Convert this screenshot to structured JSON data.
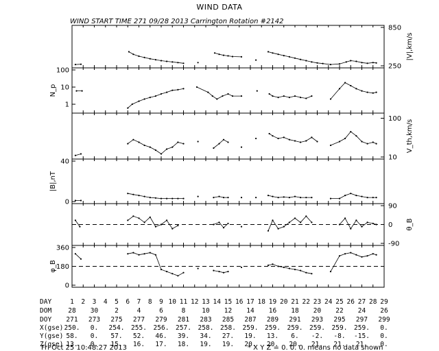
{
  "chart_data": {
    "type": "line",
    "title": "WIND DATA",
    "subtitle": "WIND START TIME 271 09/28 2013 Carrington Rotation #2142",
    "x": {
      "days": [
        1,
        2,
        3,
        4,
        5,
        6,
        7,
        8,
        9,
        10,
        11,
        12,
        13,
        14,
        15,
        16,
        17,
        18,
        19,
        20,
        21,
        22,
        23,
        24,
        25,
        26,
        27,
        28,
        29
      ],
      "day_labels": [
        "1",
        "2",
        "3",
        "4",
        "5",
        "6",
        "7",
        "8",
        "9",
        "10",
        "11",
        "12",
        "13",
        "14",
        "15",
        "16",
        "17",
        "18",
        "19",
        "20",
        "21",
        "22",
        "23",
        "24",
        "25",
        "26",
        "27",
        "28",
        "29"
      ],
      "xlim": [
        1,
        29
      ]
    },
    "panels": [
      {
        "id": "speed",
        "label": "|V|,km/s",
        "scale": "linear",
        "ylim": [
          250,
          850
        ],
        "ticks": [
          "850",
          "250"
        ],
        "points": [
          [
            1.3,
            270
          ],
          [
            1.8,
            275
          ],
          [
            6.1,
            470
          ],
          [
            6.5,
            430
          ],
          [
            7.0,
            400
          ],
          [
            7.5,
            380
          ],
          [
            8.0,
            360
          ],
          [
            8.5,
            345
          ],
          [
            9.0,
            330
          ],
          [
            9.5,
            320
          ],
          [
            10.0,
            310
          ],
          [
            10.5,
            300
          ],
          [
            11.0,
            290
          ],
          [
            12.3,
            300
          ],
          [
            13.8,
            450
          ],
          [
            14.2,
            430
          ],
          [
            14.6,
            415
          ],
          [
            15.0,
            405
          ],
          [
            15.4,
            395
          ],
          [
            16.2,
            390
          ],
          [
            17.5,
            340
          ],
          [
            18.6,
            470
          ],
          [
            19.0,
            450
          ],
          [
            19.5,
            430
          ],
          [
            20.0,
            410
          ],
          [
            20.5,
            390
          ],
          [
            21.0,
            370
          ],
          [
            21.5,
            350
          ],
          [
            22.0,
            330
          ],
          [
            22.5,
            310
          ],
          [
            23.0,
            295
          ],
          [
            23.5,
            285
          ],
          [
            24.2,
            270
          ],
          [
            25.0,
            280
          ],
          [
            25.6,
            310
          ],
          [
            26.0,
            330
          ],
          [
            26.5,
            320
          ],
          [
            27.0,
            300
          ],
          [
            27.5,
            290
          ],
          [
            28.0,
            300
          ],
          [
            28.3,
            295
          ]
        ]
      },
      {
        "id": "density",
        "label": "N_p",
        "scale": "log",
        "ylim": [
          0.4,
          100
        ],
        "ticks": [
          "100",
          "10",
          "1"
        ],
        "points": [
          [
            1.4,
            6
          ],
          [
            1.9,
            6
          ],
          [
            6.0,
            0.6
          ],
          [
            6.4,
            1.0
          ],
          [
            7.0,
            1.5
          ],
          [
            7.5,
            2.0
          ],
          [
            8.0,
            2.5
          ],
          [
            8.5,
            3.0
          ],
          [
            9.0,
            4.0
          ],
          [
            9.5,
            5.0
          ],
          [
            10.0,
            6.5
          ],
          [
            10.5,
            7.0
          ],
          [
            11.0,
            8.0
          ],
          [
            12.2,
            10
          ],
          [
            13.2,
            5
          ],
          [
            13.6,
            3
          ],
          [
            14.0,
            2
          ],
          [
            14.5,
            3
          ],
          [
            15.0,
            4
          ],
          [
            15.4,
            3
          ],
          [
            16.2,
            3
          ],
          [
            17.6,
            6
          ],
          [
            18.7,
            4
          ],
          [
            19.0,
            3
          ],
          [
            19.5,
            2.5
          ],
          [
            20.0,
            3
          ],
          [
            20.5,
            2.5
          ],
          [
            21.0,
            3
          ],
          [
            21.5,
            2.5
          ],
          [
            22.0,
            2.2
          ],
          [
            22.5,
            3.0
          ],
          [
            24.2,
            2.0
          ],
          [
            25.0,
            8
          ],
          [
            25.5,
            18
          ],
          [
            26.0,
            12
          ],
          [
            26.5,
            8
          ],
          [
            27.0,
            6
          ],
          [
            27.5,
            5
          ],
          [
            28.0,
            4.5
          ],
          [
            28.3,
            5
          ]
        ]
      },
      {
        "id": "thermal-speed",
        "label": "V_th,km/s",
        "scale": "log",
        "ylim": [
          10,
          120
        ],
        "ticks": [
          "100",
          "10"
        ],
        "points": [
          [
            1.3,
            11
          ],
          [
            1.8,
            12
          ],
          [
            6.0,
            22
          ],
          [
            6.5,
            28
          ],
          [
            7.0,
            24
          ],
          [
            7.5,
            20
          ],
          [
            8.0,
            18
          ],
          [
            8.5,
            15
          ],
          [
            9.0,
            12
          ],
          [
            9.5,
            16
          ],
          [
            10.0,
            18
          ],
          [
            10.5,
            24
          ],
          [
            11.0,
            22
          ],
          [
            12.3,
            25
          ],
          [
            13.7,
            17
          ],
          [
            14.2,
            22
          ],
          [
            14.6,
            28
          ],
          [
            15.0,
            24
          ],
          [
            16.2,
            18
          ],
          [
            17.5,
            30
          ],
          [
            18.7,
            40
          ],
          [
            19.0,
            35
          ],
          [
            19.5,
            30
          ],
          [
            20.0,
            32
          ],
          [
            20.5,
            28
          ],
          [
            21.0,
            26
          ],
          [
            21.5,
            24
          ],
          [
            22.0,
            26
          ],
          [
            22.5,
            32
          ],
          [
            23.0,
            25
          ],
          [
            24.2,
            20
          ],
          [
            25.0,
            25
          ],
          [
            25.5,
            30
          ],
          [
            26.0,
            45
          ],
          [
            26.5,
            35
          ],
          [
            27.0,
            25
          ],
          [
            27.5,
            22
          ],
          [
            28.0,
            24
          ],
          [
            28.3,
            22
          ]
        ]
      },
      {
        "id": "bmag",
        "label": "|B|,nT",
        "scale": "linear",
        "ylim": [
          0,
          40
        ],
        "ticks": [
          "40",
          "0"
        ],
        "points": [
          [
            1.3,
            1
          ],
          [
            1.8,
            1
          ],
          [
            6.0,
            8
          ],
          [
            6.5,
            7
          ],
          [
            7.0,
            6
          ],
          [
            7.5,
            5
          ],
          [
            8.0,
            4
          ],
          [
            8.5,
            3.5
          ],
          [
            9.0,
            3
          ],
          [
            9.5,
            3
          ],
          [
            10.0,
            3
          ],
          [
            10.5,
            3
          ],
          [
            11.0,
            3
          ],
          [
            12.3,
            5
          ],
          [
            13.7,
            4
          ],
          [
            14.2,
            5
          ],
          [
            14.6,
            4
          ],
          [
            15.0,
            4
          ],
          [
            16.2,
            4
          ],
          [
            17.5,
            4
          ],
          [
            18.6,
            6
          ],
          [
            19.0,
            5
          ],
          [
            19.5,
            4
          ],
          [
            20.0,
            4.5
          ],
          [
            20.5,
            4
          ],
          [
            21.0,
            5
          ],
          [
            21.5,
            4
          ],
          [
            22.0,
            4
          ],
          [
            22.5,
            4
          ],
          [
            24.2,
            3
          ],
          [
            25.0,
            3
          ],
          [
            25.5,
            6
          ],
          [
            26.0,
            8
          ],
          [
            26.5,
            6
          ],
          [
            27.0,
            5
          ],
          [
            27.5,
            4
          ],
          [
            28.0,
            4
          ],
          [
            28.3,
            4
          ]
        ]
      },
      {
        "id": "theta-b",
        "label": "θ_B",
        "scale": "linear",
        "ylim": [
          -90,
          90
        ],
        "ticks": [
          "90",
          "0",
          "-90"
        ],
        "dashed_reference": 0,
        "points": [
          [
            1.3,
            20
          ],
          [
            1.7,
            -10
          ],
          [
            6.0,
            20
          ],
          [
            6.5,
            40
          ],
          [
            7.0,
            30
          ],
          [
            7.5,
            10
          ],
          [
            8.0,
            35
          ],
          [
            8.5,
            -10
          ],
          [
            9.0,
            0
          ],
          [
            9.5,
            20
          ],
          [
            10.0,
            -20
          ],
          [
            10.5,
            -5
          ],
          [
            13.7,
            0
          ],
          [
            14.2,
            10
          ],
          [
            14.6,
            -15
          ],
          [
            15.0,
            5
          ],
          [
            16.2,
            -10
          ],
          [
            18.6,
            -30
          ],
          [
            19.0,
            20
          ],
          [
            19.5,
            -20
          ],
          [
            20.0,
            -10
          ],
          [
            20.5,
            10
          ],
          [
            21.0,
            30
          ],
          [
            21.5,
            10
          ],
          [
            22.0,
            40
          ],
          [
            22.5,
            10
          ],
          [
            25.0,
            0
          ],
          [
            25.5,
            30
          ],
          [
            26.0,
            -20
          ],
          [
            26.5,
            20
          ],
          [
            27.0,
            -10
          ],
          [
            27.5,
            10
          ],
          [
            28.0,
            5
          ],
          [
            28.3,
            0
          ]
        ]
      },
      {
        "id": "phi-b",
        "label": "φ_B",
        "scale": "linear",
        "ylim": [
          0,
          360
        ],
        "ticks": [
          "360",
          "180",
          "0"
        ],
        "dashed_reference": 180,
        "points": [
          [
            1.3,
            300
          ],
          [
            1.8,
            250
          ],
          [
            6.0,
            300
          ],
          [
            6.5,
            310
          ],
          [
            7.0,
            290
          ],
          [
            7.5,
            300
          ],
          [
            8.0,
            310
          ],
          [
            8.5,
            290
          ],
          [
            9.0,
            150
          ],
          [
            9.5,
            130
          ],
          [
            10.0,
            110
          ],
          [
            10.5,
            90
          ],
          [
            11.0,
            120
          ],
          [
            12.3,
            160
          ],
          [
            13.7,
            140
          ],
          [
            14.2,
            130
          ],
          [
            14.6,
            120
          ],
          [
            15.0,
            130
          ],
          [
            16.2,
            170
          ],
          [
            18.6,
            190
          ],
          [
            19.0,
            200
          ],
          [
            19.5,
            180
          ],
          [
            20.0,
            170
          ],
          [
            20.5,
            160
          ],
          [
            21.0,
            150
          ],
          [
            21.5,
            140
          ],
          [
            22.0,
            120
          ],
          [
            22.5,
            110
          ],
          [
            24.2,
            130
          ],
          [
            25.0,
            280
          ],
          [
            25.5,
            300
          ],
          [
            26.0,
            310
          ],
          [
            26.5,
            290
          ],
          [
            27.0,
            270
          ],
          [
            27.5,
            280
          ],
          [
            28.0,
            300
          ],
          [
            28.3,
            290
          ]
        ]
      }
    ],
    "table": {
      "headers": [
        "DAY",
        "DOM",
        "DOY",
        "X(gse)",
        "Y(gse)",
        "Z(gse)"
      ],
      "rows": [
        [
          "1",
          "2",
          "3",
          "4",
          "5",
          "6",
          "7",
          "8",
          "9",
          "10",
          "11",
          "12",
          "13",
          "14",
          "15",
          "16",
          "17",
          "18",
          "19",
          "20",
          "21",
          "22",
          "23",
          "24",
          "25",
          "26",
          "27",
          "28",
          "29"
        ],
        [
          "28",
          "30",
          "2",
          "4",
          "6",
          "8",
          "10",
          "12",
          "14",
          "16",
          "18",
          "20",
          "22",
          "24",
          "26"
        ],
        [
          "271",
          "273",
          "275",
          "277",
          "279",
          "281",
          "283",
          "285",
          "287",
          "289",
          "291",
          "293",
          "295",
          "297",
          "299"
        ],
        [
          "250.",
          "0.",
          "254.",
          "255.",
          "256.",
          "257.",
          "258.",
          "258.",
          "259.",
          "259.",
          "259.",
          "259.",
          "259.",
          "259.",
          "0."
        ],
        [
          "58.",
          "0.",
          "57.",
          "52.",
          "46.",
          "39.",
          "34.",
          "27.",
          "19.",
          "13.",
          "6.",
          "-2.",
          "-8.",
          "-15.",
          "0."
        ],
        [
          "13.",
          "0.",
          "15.",
          "16.",
          "17.",
          "18.",
          "19.",
          "19.",
          "20.",
          "20.",
          "20.",
          "21.",
          "21.",
          "21.",
          "0."
        ]
      ]
    }
  },
  "footer": {
    "timestamp": "Fri Oct 25 10:48:27 2013",
    "note": "* X Y Z = 0. 0. 0. means no data shown"
  }
}
